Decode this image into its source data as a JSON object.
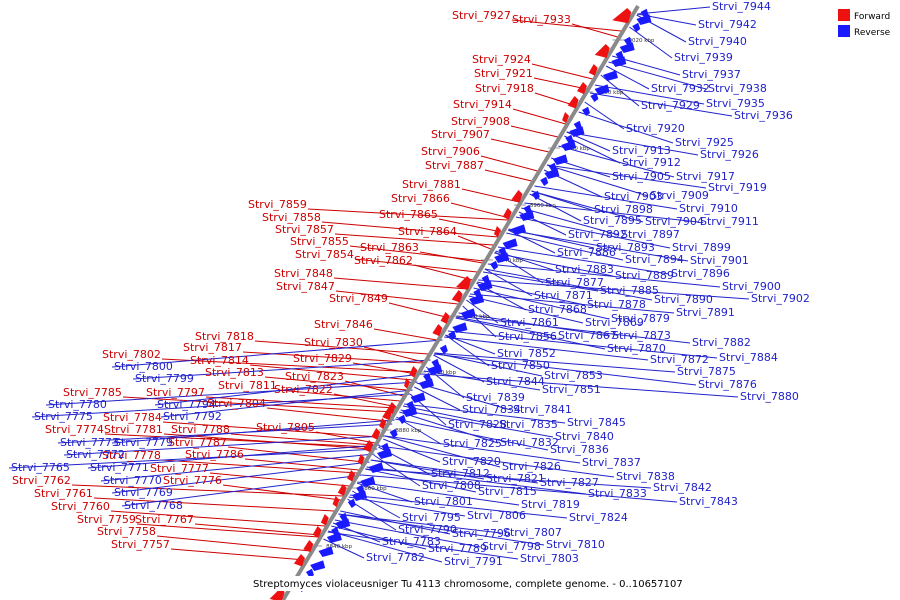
{
  "colors": {
    "forward": "#ee1111",
    "reverse": "#1a1aff",
    "axis": "#8a8a8a",
    "label_red": "#cc0000",
    "label_blue": "#2222cc"
  },
  "caption": "Streptomyces violaceusniger Tu 4113 chromosome, complete genome. - 0..10657107",
  "legend": {
    "forward": "Forward",
    "reverse": "Reverse"
  },
  "axis": {
    "ticks": [
      "9020 kbp",
      "9000 kbp",
      "8980 kbp",
      "8960 kbp",
      "8940 kbp",
      "8920 kbp",
      "8900 kbp",
      "8880 kbp",
      "8860 kbp",
      "8840 kbp"
    ]
  },
  "forward_genes": [
    "Strvi_7927",
    "Strvi_7933",
    "Strvi_7924",
    "Strvi_7921",
    "Strvi_7918",
    "Strvi_7914",
    "Strvi_7908",
    "Strvi_7907",
    "Strvi_7906",
    "Strvi_7887",
    "Strvi_7881",
    "Strvi_7866",
    "Strvi_7859",
    "Strvi_7865",
    "Strvi_7858",
    "Strvi_7857",
    "Strvi_7864",
    "Strvi_7855",
    "Strvi_7863",
    "Strvi_7854",
    "Strvi_7862",
    "Strvi_7848",
    "Strvi_7847",
    "Strvi_7849",
    "Strvi_7846",
    "Strvi_7818",
    "Strvi_7830",
    "Strvi_7817",
    "Strvi_7802",
    "Strvi_7814",
    "Strvi_7829",
    "Strvi_7813",
    "Strvi_7823",
    "Strvi_7811",
    "Strvi_7822",
    "Strvi_7785",
    "Strvi_7797",
    "Strvi_7804",
    "Strvi_7784",
    "Strvi_7805",
    "Strvi_7774",
    "Strvi_7781",
    "Strvi_7788",
    "Strvi_7778",
    "Strvi_7787",
    "Strvi_7786",
    "Strvi_7777",
    "Strvi_7776",
    "Strvi_7762",
    "Strvi_7761",
    "Strvi_7760",
    "Strvi_7767",
    "Strvi_7759",
    "Strvi_7758",
    "Strvi_7757"
  ],
  "reverse_genes": [
    "Strvi_7944",
    "Strvi_7942",
    "Strvi_7940",
    "Strvi_7939",
    "Strvi_7937",
    "Strvi_7932",
    "Strvi_7938",
    "Strvi_7929",
    "Strvi_7935",
    "Strvi_7936",
    "Strvi_7920",
    "Strvi_7925",
    "Strvi_7913",
    "Strvi_7926",
    "Strvi_7912",
    "Strvi_7917",
    "Strvi_7905",
    "Strvi_7919",
    "Strvi_7903",
    "Strvi_7909",
    "Strvi_7898",
    "Strvi_7910",
    "Strvi_7895",
    "Strvi_7904",
    "Strvi_7911",
    "Strvi_7892",
    "Strvi_7897",
    "Strvi_7899",
    "Strvi_7893",
    "Strvi_7886",
    "Strvi_7894",
    "Strvi_7901",
    "Strvi_7883",
    "Strvi_7889",
    "Strvi_7896",
    "Strvi_7877",
    "Strvi_7885",
    "Strvi_7900",
    "Strvi_7871",
    "Strvi_7890",
    "Strvi_7902",
    "Strvi_7878",
    "Strvi_7868",
    "Strvi_7879",
    "Strvi_7891",
    "Strvi_7861",
    "Strvi_7869",
    "Strvi_7856",
    "Strvi_7867",
    "Strvi_7873",
    "Strvi_7882",
    "Strvi_7870",
    "Strvi_7852",
    "Strvi_7872",
    "Strvi_7884",
    "Strvi_7850",
    "Strvi_7875",
    "Strvi_7853",
    "Strvi_7844",
    "Strvi_7876",
    "Strvi_7851",
    "Strvi_7880",
    "Strvi_7800",
    "Strvi_7839",
    "Strvi_7799",
    "Strvi_7834",
    "Strvi_7841",
    "Strvi_7794",
    "Strvi_7845",
    "Strvi_7780",
    "Strvi_7792",
    "Strvi_7828",
    "Strvi_7835",
    "Strvi_7775",
    "Strvi_7840",
    "Strvi_7832",
    "Strvi_7773",
    "Strvi_7779",
    "Strvi_7825",
    "Strvi_7836",
    "Strvi_7772",
    "Strvi_7820",
    "Strvi_7837",
    "Strvi_7826",
    "Strvi_7765",
    "Strvi_7771",
    "Strvi_7812",
    "Strvi_7838",
    "Strvi_7821",
    "Strvi_7827",
    "Strvi_7770",
    "Strvi_7808",
    "Strvi_7842",
    "Strvi_7815",
    "Strvi_7833",
    "Strvi_7769",
    "Strvi_7801",
    "Strvi_7819",
    "Strvi_7843",
    "Strvi_7768",
    "Strvi_7806",
    "Strvi_7824",
    "Strvi_7795",
    "Strvi_7790",
    "Strvi_7807",
    "Strvi_7796",
    "Strvi_7798",
    "Strvi_7810",
    "Strvi_7783",
    "Strvi_7789",
    "Strvi_7803",
    "Strvi_7791",
    "Strvi_7782"
  ]
}
